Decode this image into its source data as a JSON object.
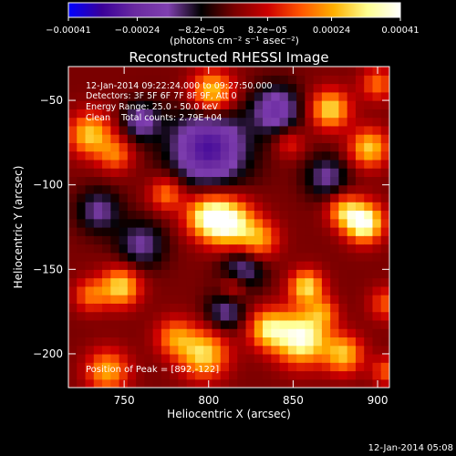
{
  "chart_data": {
    "type": "heatmap",
    "title": "Reconstructed RHESSI Image",
    "xlabel": "Heliocentric X (arcsec)",
    "ylabel": "Heliocentric Y (arcsec)",
    "xlim": [
      717,
      907
    ],
    "ylim": [
      -220,
      -30
    ],
    "x_ticks": [
      750,
      800,
      850,
      900
    ],
    "y_ticks": [
      -50,
      -100,
      -150,
      -200
    ],
    "x_tick_labels": [
      "750",
      "800",
      "850",
      "900"
    ],
    "y_tick_labels": [
      "−50",
      "−100",
      "−150",
      "−200"
    ],
    "info_lines": [
      "12-Jan-2014 09:22:24.000 to 09:27:50.000",
      "Detectors: 3F 5F 6F 7F 8F 9F, Att 0",
      "Energy Range: 25.0 - 50.0 keV",
      "Clean    Total counts: 2.79E+04"
    ],
    "peak_label": "Position of Peak = [892,-122]",
    "colorbar": {
      "min": -0.00041,
      "max": 0.00041,
      "tick_values": [
        -0.00041,
        -0.00024,
        -8.2e-05,
        8.2e-05,
        0.00024,
        0.00041
      ],
      "tick_labels": [
        "−0.00041",
        "−0.00024",
        "−8.2e−05",
        "8.2e−05",
        "0.00024",
        "0.00041"
      ],
      "unit_label": "(photons cm⁻² s⁻¹ asec⁻²)",
      "colors": [
        "#0000ff",
        "#3a0099",
        "#6a2aa0",
        "#8040b0",
        "#000000",
        "#7a0000",
        "#cc0000",
        "#ff5500",
        "#ffb000",
        "#ffff90",
        "#ffffff"
      ]
    },
    "grid": false,
    "resolution_arcsec": 5,
    "sources": [
      {
        "x": 812,
        "y": -122,
        "amp": 0.00039,
        "sigma": 10
      },
      {
        "x": 798,
        "y": -118,
        "amp": 0.00028,
        "sigma": 9
      },
      {
        "x": 830,
        "y": -132,
        "amp": 0.00022,
        "sigma": 8
      },
      {
        "x": 892,
        "y": -122,
        "amp": 0.00041,
        "sigma": 8
      },
      {
        "x": 880,
        "y": -115,
        "amp": 0.00022,
        "sigma": 7
      },
      {
        "x": 855,
        "y": -190,
        "amp": 0.0004,
        "sigma": 11
      },
      {
        "x": 835,
        "y": -185,
        "amp": 0.00028,
        "sigma": 8
      },
      {
        "x": 880,
        "y": -200,
        "amp": 0.00026,
        "sigma": 8
      },
      {
        "x": 797,
        "y": -200,
        "amp": 0.0003,
        "sigma": 10
      },
      {
        "x": 780,
        "y": -190,
        "amp": 0.0002,
        "sigma": 8
      },
      {
        "x": 740,
        "y": -210,
        "amp": 0.00024,
        "sigma": 9
      },
      {
        "x": 748,
        "y": -160,
        "amp": 0.0003,
        "sigma": 8
      },
      {
        "x": 730,
        "y": -70,
        "amp": 0.00028,
        "sigma": 9
      },
      {
        "x": 745,
        "y": -82,
        "amp": 0.00018,
        "sigma": 7
      },
      {
        "x": 802,
        "y": -45,
        "amp": 0.0003,
        "sigma": 9
      },
      {
        "x": 872,
        "y": -55,
        "amp": 0.0003,
        "sigma": 8
      },
      {
        "x": 895,
        "y": -78,
        "amp": 0.00028,
        "sigma": 8
      },
      {
        "x": 900,
        "y": -40,
        "amp": 0.00018,
        "sigma": 7
      },
      {
        "x": 858,
        "y": -160,
        "amp": 0.0003,
        "sigma": 7
      },
      {
        "x": 868,
        "y": -175,
        "amp": 0.00016,
        "sigma": 6
      },
      {
        "x": 775,
        "y": -105,
        "amp": 0.0002,
        "sigma": 7
      },
      {
        "x": 730,
        "y": -165,
        "amp": 0.00018,
        "sigma": 7
      },
      {
        "x": 905,
        "y": -170,
        "amp": 0.00016,
        "sigma": 7
      },
      {
        "x": 905,
        "y": -210,
        "amp": 0.00016,
        "sigma": 6
      },
      {
        "x": 848,
        "y": -75,
        "amp": 0.00012,
        "sigma": 6
      },
      {
        "x": 815,
        "y": -160,
        "amp": 0.00014,
        "sigma": 6
      },
      {
        "x": 800,
        "y": -78,
        "amp": -0.0003,
        "sigma": 16
      },
      {
        "x": 840,
        "y": -55,
        "amp": -0.00022,
        "sigma": 10
      },
      {
        "x": 760,
        "y": -62,
        "amp": -0.00018,
        "sigma": 8
      },
      {
        "x": 760,
        "y": -135,
        "amp": -0.00016,
        "sigma": 10
      },
      {
        "x": 820,
        "y": -150,
        "amp": -0.00018,
        "sigma": 9
      },
      {
        "x": 810,
        "y": -175,
        "amp": -0.00016,
        "sigma": 8
      },
      {
        "x": 870,
        "y": -95,
        "amp": -0.00016,
        "sigma": 9
      },
      {
        "x": 735,
        "y": -115,
        "amp": -0.00016,
        "sigma": 9
      }
    ]
  },
  "footer": {
    "timestamp": "12-Jan-2014 05:08"
  }
}
